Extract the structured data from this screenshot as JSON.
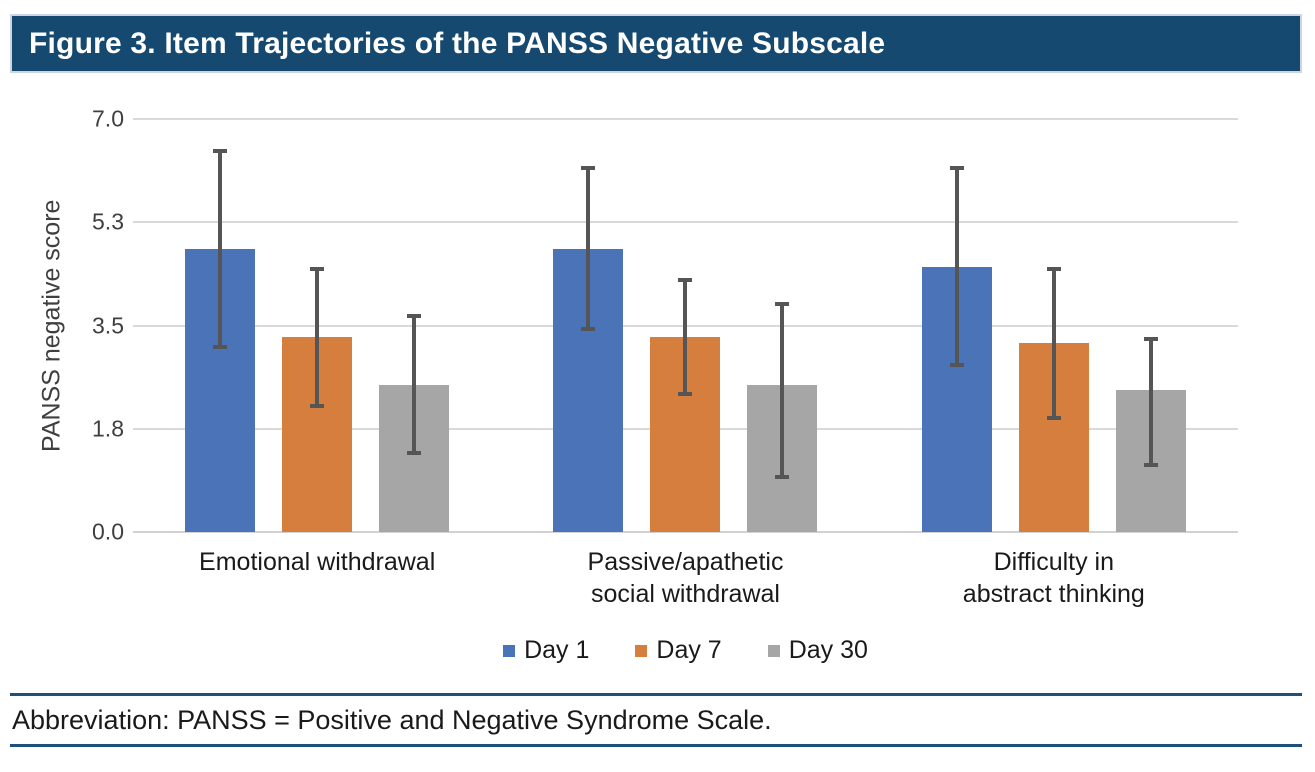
{
  "figure": {
    "title": "Figure 3. Item Trajectories of the PANSS Negative Subscale"
  },
  "chart_data": {
    "type": "bar",
    "title": "Figure 3. Item Trajectories of the PANSS Negative Subscale",
    "y_axis_title": "PANSS negative score",
    "xlabel": "",
    "ylim": [
      0,
      7
    ],
    "grid": true,
    "legend_position": "bottom",
    "gridline_color": "#D9D9D9",
    "error_bar_color": "#555555",
    "y_ticks": [
      {
        "label": "7.0",
        "value": 7
      },
      {
        "label": "5.3",
        "value": 5.25
      },
      {
        "label": "3.5",
        "value": 3.5
      },
      {
        "label": "1.8",
        "value": 1.75
      },
      {
        "label": "0.0",
        "value": 0
      }
    ],
    "categories": [
      "Emotional withdrawal",
      "Passive/apathetic social withdrawal",
      "Difficulty in abstract thinking"
    ],
    "category_lines": [
      [
        "Emotional withdrawal"
      ],
      [
        "Passive/apathetic",
        "social withdrawal"
      ],
      [
        "Difficulty in",
        "abstract thinking"
      ]
    ],
    "series": [
      {
        "name": "Day 1",
        "color": "#4A73B8",
        "values": [
          4.8,
          4.8,
          4.5
        ],
        "error_low": [
          3.1,
          3.4,
          2.8
        ],
        "error_high": [
          6.5,
          6.2,
          6.2
        ]
      },
      {
        "name": "Day 7",
        "color": "#D57E3E",
        "values": [
          3.3,
          3.3,
          3.2
        ],
        "error_low": [
          2.1,
          2.3,
          1.9
        ],
        "error_high": [
          4.5,
          4.3,
          4.5
        ]
      },
      {
        "name": "Day 30",
        "color": "#A6A6A6",
        "values": [
          2.5,
          2.5,
          2.4
        ],
        "error_low": [
          1.3,
          0.9,
          1.1
        ],
        "error_high": [
          3.7,
          3.9,
          3.3
        ]
      }
    ]
  },
  "footer": {
    "abbreviation": "Abbreviation: PANSS = Positive and Negative Syndrome Scale."
  }
}
